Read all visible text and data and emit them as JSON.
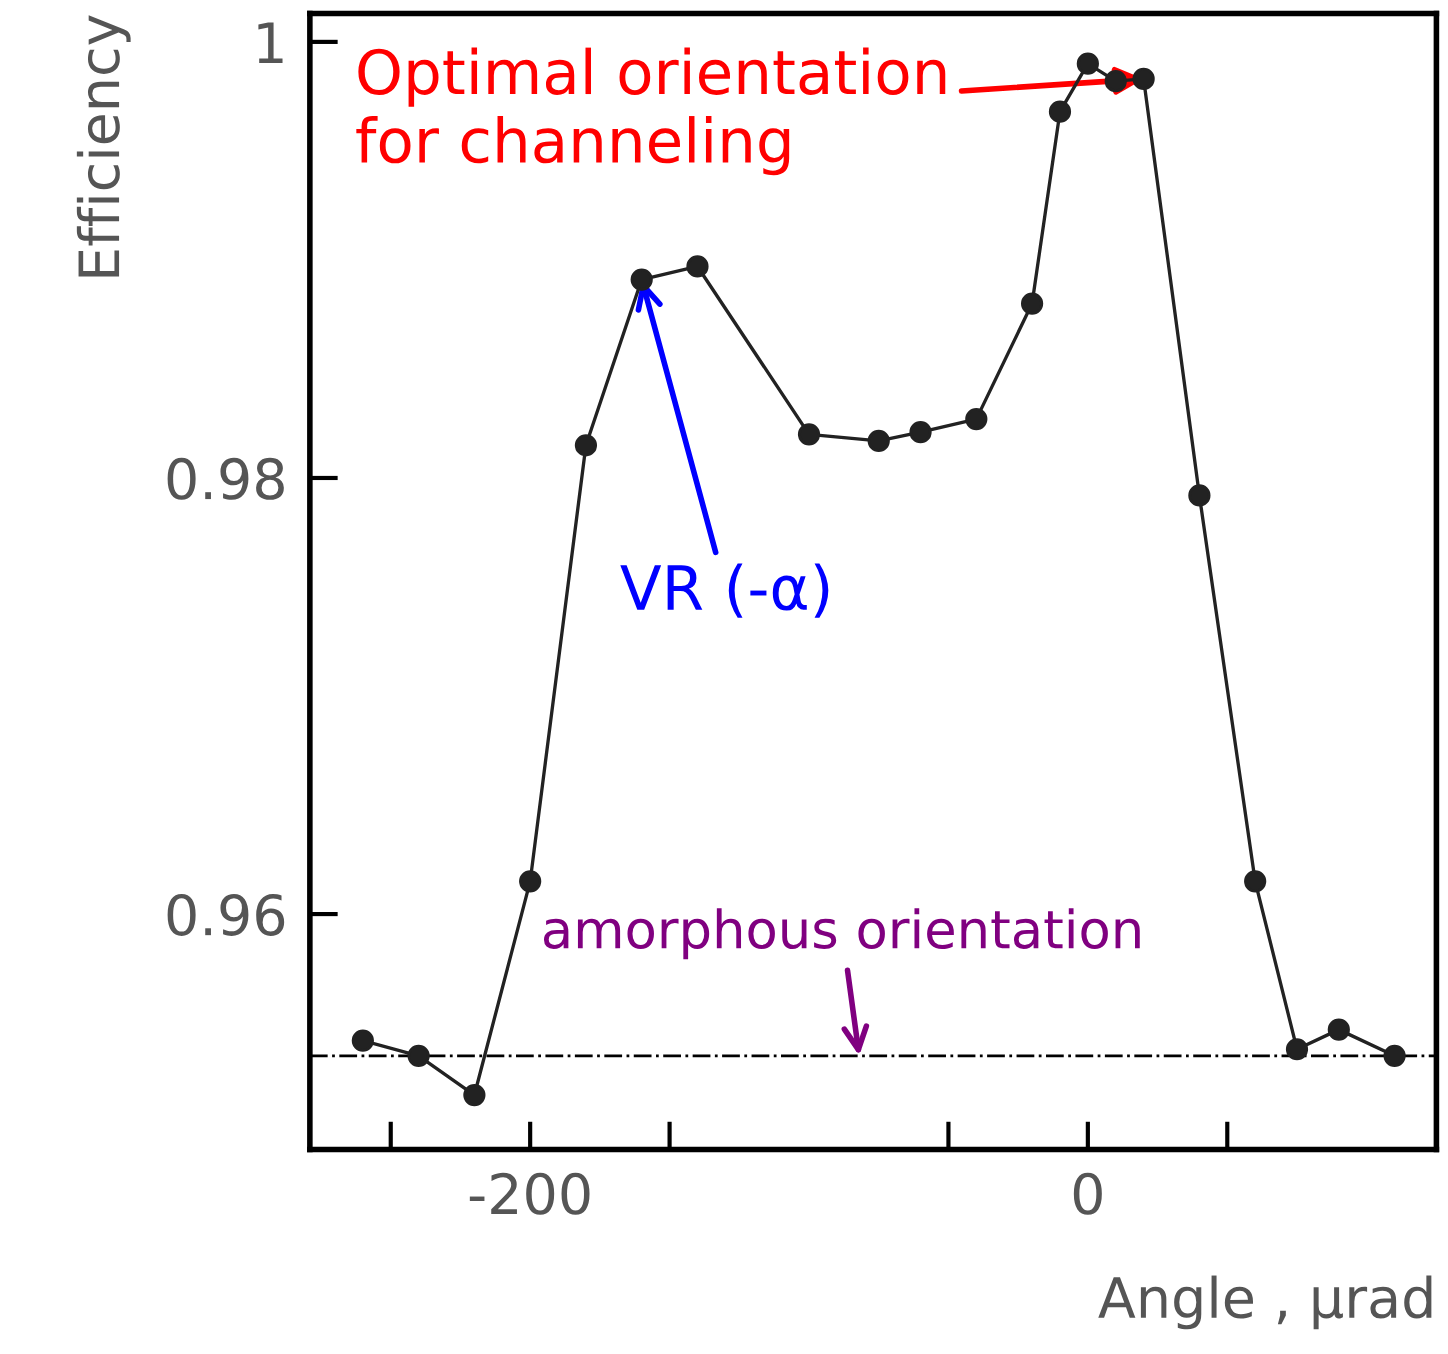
{
  "chart_data": {
    "type": "line",
    "xlabel": "Angle , μrad",
    "ylabel": "Efficiency",
    "x": [
      -260,
      -240,
      -220,
      -200,
      -180,
      -160,
      -140,
      -100,
      -75,
      -60,
      -40,
      -20,
      -10,
      0,
      10,
      20,
      40,
      60,
      75,
      90,
      110
    ],
    "series": [
      {
        "color": "#222222",
        "values": [
          0.9542,
          0.9535,
          0.9517,
          0.9615,
          0.9815,
          0.9891,
          0.9897,
          0.982,
          0.9817,
          0.9821,
          0.9827,
          0.988,
          0.9968,
          0.999,
          0.9982,
          0.9983,
          0.9792,
          0.9615,
          0.9538,
          0.9547,
          0.9535
        ]
      }
    ],
    "marker": "circle",
    "line_style": "solid",
    "grid": false,
    "legend": false,
    "xlim": [
      -279,
      125
    ],
    "ylim": [
      0.9492,
      1.0013
    ],
    "xticks": [
      {
        "value": -250,
        "label": null
      },
      -200,
      {
        "value": -150,
        "label": null
      },
      {
        "value": -50,
        "label": null
      },
      0,
      {
        "value": 50,
        "label": null
      }
    ],
    "yticks": [
      0.96,
      0.98,
      1
    ],
    "ref_lines": [
      {
        "axis": "y",
        "value": 0.9535,
        "label": null,
        "color": "#000000",
        "line_style": "dashdot"
      }
    ],
    "annotations": [
      {
        "text": "Optimal orientation\nfor channeling",
        "x": 20,
        "y": 0.9983
      },
      {
        "text": "VR (-α)",
        "x": -160,
        "y": 0.9891
      },
      {
        "text": "amorphous orientation",
        "x": -82,
        "y": 0.9535
      }
    ]
  }
}
